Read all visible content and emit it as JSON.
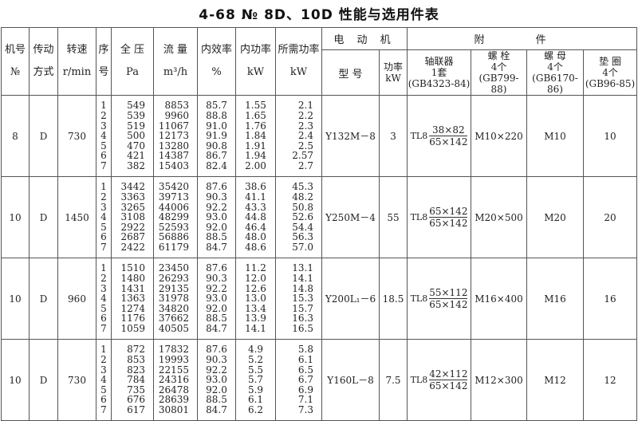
{
  "title": "4-68 № 8D、10D 性能与选用件表",
  "header": {
    "fan_no": [
      "机号",
      "№"
    ],
    "drive": [
      "传动",
      "方式"
    ],
    "speed": [
      "转速",
      "r/min"
    ],
    "seq": [
      "序",
      "号"
    ],
    "pressure": [
      "全 压",
      "Pa"
    ],
    "flow": [
      "流 量",
      "m³/h"
    ],
    "efficiency": [
      "内效率",
      "%"
    ],
    "internal_power": [
      "内功率",
      "kW"
    ],
    "required_power": [
      "所需功率",
      "kW"
    ],
    "motor": "电 动 机",
    "motor_model": "型 号",
    "motor_power": [
      "功率",
      "kW"
    ],
    "accessories": "附 件",
    "coupling": [
      "轴联器",
      "1套",
      "(GB4323-84)"
    ],
    "bolt": [
      "螺 栓",
      "4个",
      "(GB799-88)"
    ],
    "nut": [
      "螺 母",
      "4个",
      "(GB6170-86)"
    ],
    "washer": [
      "垫 圈",
      "4个",
      "(GB96-85)"
    ]
  },
  "groups": [
    {
      "fan_no": "8",
      "drive": "D",
      "speed": "730",
      "seq": [
        "1",
        "2",
        "3",
        "4",
        "5",
        "6",
        "7"
      ],
      "pressure": [
        "549",
        "539",
        "519",
        "500",
        "470",
        "421",
        "382"
      ],
      "flow": [
        "8853",
        "9960",
        "11067",
        "12173",
        "13280",
        "14387",
        "15403"
      ],
      "efficiency": [
        "85.7",
        "88.8",
        "91.0",
        "91.9",
        "90.8",
        "86.7",
        "82.4"
      ],
      "internal_power": [
        "1.55",
        "1.65",
        "1.76",
        "1.84",
        "1.91",
        "1.94",
        "2.00"
      ],
      "required_power": [
        "2.1",
        "2.2",
        "2.3",
        "2.4",
        "2.5",
        "2.57",
        "2.7"
      ],
      "motor_model": "Y132M－8",
      "motor_power": "3",
      "coupling": {
        "prefix": "TL8",
        "num": "38×82",
        "den": "65×142"
      },
      "bolt": "M10×220",
      "nut": "M10",
      "washer": "10"
    },
    {
      "fan_no": "10",
      "drive": "D",
      "speed": "1450",
      "seq": [
        "1",
        "2",
        "3",
        "4",
        "5",
        "6",
        "7"
      ],
      "pressure": [
        "3442",
        "3363",
        "3265",
        "3108",
        "2922",
        "2687",
        "2422"
      ],
      "flow": [
        "35420",
        "39713",
        "44006",
        "48299",
        "52593",
        "56886",
        "61179"
      ],
      "efficiency": [
        "87.6",
        "90.3",
        "92.2",
        "93.0",
        "92.0",
        "88.5",
        "84.7"
      ],
      "internal_power": [
        "38.6",
        "41.1",
        "43.3",
        "44.8",
        "46.4",
        "48.0",
        "48.6"
      ],
      "required_power": [
        "45.3",
        "48.2",
        "50.8",
        "52.6",
        "54.4",
        "56.3",
        "57.0"
      ],
      "motor_model": "Y250M－4",
      "motor_power": "55",
      "coupling": {
        "prefix": "TL8",
        "num": "65×142",
        "den": "65×142"
      },
      "bolt": "M20×500",
      "nut": "M20",
      "washer": "20"
    },
    {
      "fan_no": "10",
      "drive": "D",
      "speed": "960",
      "seq": [
        "1",
        "2",
        "3",
        "4",
        "5",
        "6",
        "7"
      ],
      "pressure": [
        "1510",
        "1480",
        "1431",
        "1363",
        "1274",
        "1176",
        "1059"
      ],
      "flow": [
        "23450",
        "26293",
        "29135",
        "31978",
        "34820",
        "37662",
        "40505"
      ],
      "efficiency": [
        "87.6",
        "90.3",
        "92.2",
        "93.0",
        "92.0",
        "88.5",
        "84.7"
      ],
      "internal_power": [
        "11.2",
        "12.0",
        "12.6",
        "13.0",
        "13.4",
        "13.9",
        "14.1"
      ],
      "required_power": [
        "13.1",
        "14.1",
        "14.8",
        "15.3",
        "15.7",
        "16.3",
        "16.5"
      ],
      "motor_model": "Y200L₁－6",
      "motor_power": "18.5",
      "coupling": {
        "prefix": "TL8",
        "num": "55×112",
        "den": "65×142"
      },
      "bolt": "M16×400",
      "nut": "M16",
      "washer": "16"
    },
    {
      "fan_no": "10",
      "drive": "D",
      "speed": "730",
      "seq": [
        "1",
        "2",
        "3",
        "4",
        "5",
        "6",
        "7"
      ],
      "pressure": [
        "872",
        "853",
        "823",
        "784",
        "735",
        "676",
        "617"
      ],
      "flow": [
        "17832",
        "19993",
        "22155",
        "24316",
        "26478",
        "28639",
        "30801"
      ],
      "efficiency": [
        "87.6",
        "90.3",
        "92.2",
        "93.0",
        "92.0",
        "88.5",
        "84.7"
      ],
      "internal_power": [
        "4.9",
        "5.2",
        "5.5",
        "5.7",
        "5.9",
        "6.1",
        "6.2"
      ],
      "required_power": [
        "5.8",
        "6.1",
        "6.5",
        "6.7",
        "6.9",
        "7.1",
        "7.3"
      ],
      "motor_model": "Y160L－8",
      "motor_power": "7.5",
      "coupling": {
        "prefix": "TL8",
        "num": "42×112",
        "den": "65×142"
      },
      "bolt": "M12×300",
      "nut": "M12",
      "washer": "12"
    }
  ]
}
